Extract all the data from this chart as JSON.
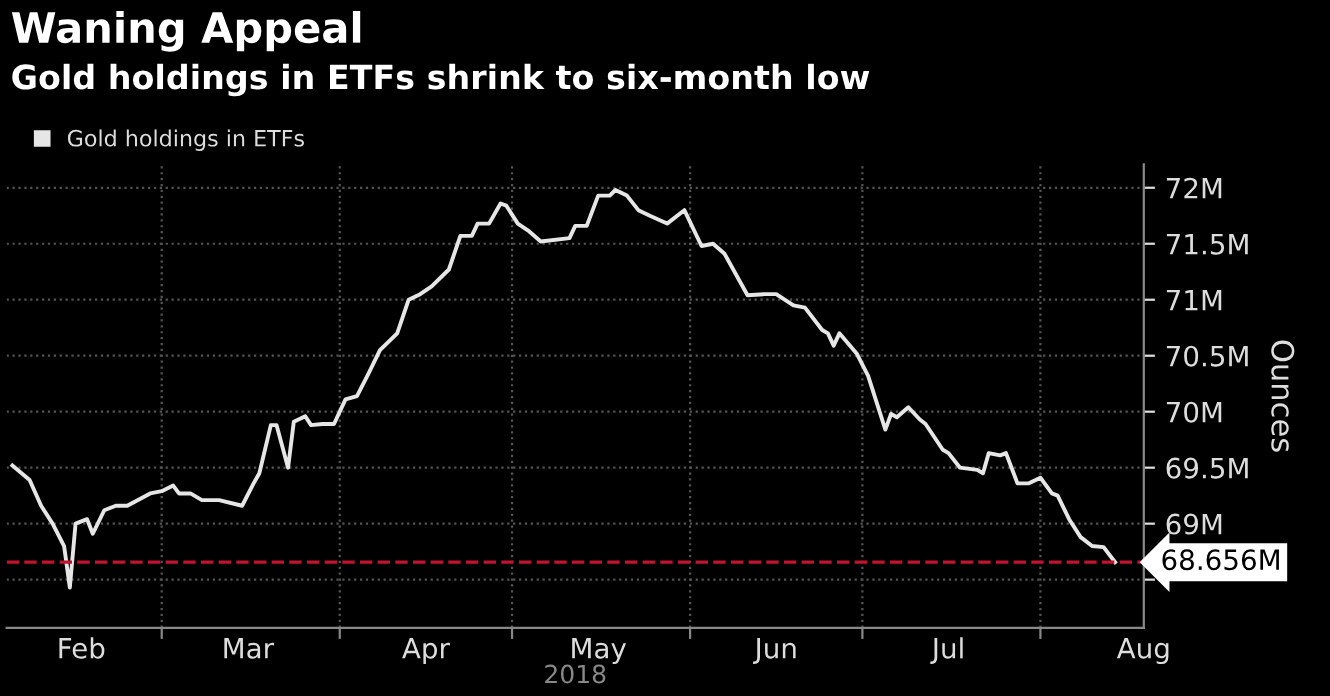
{
  "chart_data": {
    "type": "line",
    "title": "Waning Appeal",
    "subtitle": "Gold holdings in ETFs shrink to six-month low",
    "ylabel": "Ounces",
    "xlabel": "2018",
    "x": [
      "2018-02-03",
      "2018-02-06",
      "2018-02-08",
      "2018-02-10",
      "2018-02-12",
      "2018-02-13",
      "2018-02-14",
      "2018-02-16",
      "2018-02-17",
      "2018-02-19",
      "2018-02-21",
      "2018-02-23",
      "2018-02-27",
      "2018-03-01",
      "2018-03-03",
      "2018-03-04",
      "2018-03-06",
      "2018-03-08",
      "2018-03-11",
      "2018-03-15",
      "2018-03-17",
      "2018-03-18",
      "2018-03-20",
      "2018-03-21",
      "2018-03-23",
      "2018-03-24",
      "2018-03-26",
      "2018-03-27",
      "2018-03-29",
      "2018-03-31",
      "2018-04-02",
      "2018-04-04",
      "2018-04-06",
      "2018-04-08",
      "2018-04-11",
      "2018-04-13",
      "2018-04-15",
      "2018-04-17",
      "2018-04-20",
      "2018-04-22",
      "2018-04-24",
      "2018-04-25",
      "2018-04-27",
      "2018-04-29",
      "2018-04-30",
      "2018-05-02",
      "2018-05-04",
      "2018-05-06",
      "2018-05-11",
      "2018-05-12",
      "2018-05-14",
      "2018-05-16",
      "2018-05-18",
      "2018-05-19",
      "2018-05-21",
      "2018-05-23",
      "2018-05-25",
      "2018-05-28",
      "2018-05-31",
      "2018-06-03",
      "2018-06-05",
      "2018-06-07",
      "2018-06-11",
      "2018-06-14",
      "2018-06-16",
      "2018-06-19",
      "2018-06-21",
      "2018-06-24",
      "2018-06-25",
      "2018-06-26",
      "2018-06-27",
      "2018-06-30",
      "2018-07-02",
      "2018-07-05",
      "2018-07-06",
      "2018-07-07",
      "2018-07-09",
      "2018-07-11",
      "2018-07-12",
      "2018-07-15",
      "2018-07-16",
      "2018-07-18",
      "2018-07-21",
      "2018-07-22",
      "2018-07-23",
      "2018-07-25",
      "2018-07-26",
      "2018-07-28",
      "2018-07-30",
      "2018-08-01",
      "2018-08-03",
      "2018-08-04",
      "2018-08-06",
      "2018-08-08",
      "2018-08-10",
      "2018-08-12",
      "2018-08-14"
    ],
    "series": [
      {
        "name": "Gold holdings in ETFs",
        "color": "#e6e6e6",
        "values": [
          69.52,
          69.39,
          69.16,
          69.0,
          68.8,
          68.43,
          69.0,
          69.04,
          68.91,
          69.12,
          69.16,
          69.16,
          69.27,
          69.29,
          69.34,
          69.27,
          69.27,
          69.21,
          69.21,
          69.16,
          69.36,
          69.45,
          69.88,
          69.88,
          69.5,
          69.91,
          69.96,
          69.88,
          69.89,
          69.89,
          70.11,
          70.14,
          70.34,
          70.55,
          70.7,
          71.0,
          71.05,
          71.12,
          71.27,
          71.57,
          71.57,
          71.68,
          71.68,
          71.86,
          71.84,
          71.68,
          71.61,
          71.52,
          71.55,
          71.66,
          71.66,
          71.93,
          71.93,
          71.98,
          71.93,
          71.8,
          71.75,
          71.68,
          71.8,
          71.48,
          71.5,
          71.41,
          71.04,
          71.05,
          71.05,
          70.95,
          70.93,
          70.73,
          70.7,
          70.59,
          70.7,
          70.52,
          70.32,
          69.84,
          69.98,
          69.95,
          70.04,
          69.93,
          69.89,
          69.66,
          69.63,
          69.5,
          69.48,
          69.45,
          69.63,
          69.61,
          69.63,
          69.36,
          69.36,
          69.41,
          69.27,
          69.25,
          69.04,
          68.88,
          68.8,
          68.79,
          68.656
        ]
      }
    ],
    "xlim": [
      "2018-02-02",
      "2018-08-19"
    ],
    "xticks": [
      {
        "value": "2018-02-15",
        "label": "Feb"
      },
      {
        "value": "2018-03-01",
        "label": null
      },
      {
        "value": "2018-03-16",
        "label": "Mar"
      },
      {
        "value": "2018-04-01",
        "label": null
      },
      {
        "value": "2018-04-16",
        "label": "Apr"
      },
      {
        "value": "2018-05-01",
        "label": null
      },
      {
        "value": "2018-05-16",
        "label": "May"
      },
      {
        "value": "2018-06-01",
        "label": null
      },
      {
        "value": "2018-06-16",
        "label": "Jun"
      },
      {
        "value": "2018-07-01",
        "label": null
      },
      {
        "value": "2018-07-16",
        "label": "Jul"
      },
      {
        "value": "2018-08-01",
        "label": null
      },
      {
        "value": "2018-08-19",
        "label": "Aug"
      }
    ],
    "ylim": [
      68.07,
      72.21
    ],
    "yticks": [
      {
        "value": 68.5,
        "label": null
      },
      {
        "value": 69,
        "label": "69M"
      },
      {
        "value": 69.5,
        "label": "69.5M"
      },
      {
        "value": 70,
        "label": "70M"
      },
      {
        "value": 70.5,
        "label": "70.5M"
      },
      {
        "value": 71,
        "label": "71M"
      },
      {
        "value": 71.5,
        "label": "71.5M"
      },
      {
        "value": 72,
        "label": "72M"
      }
    ],
    "ref_lines": [
      {
        "axis": "y",
        "value": 68.656,
        "label": "68.656M",
        "color": "#c0152f",
        "line_style": "dashed"
      }
    ],
    "grid": true,
    "legend": "top left",
    "marker": "none",
    "line_style": "solid"
  }
}
